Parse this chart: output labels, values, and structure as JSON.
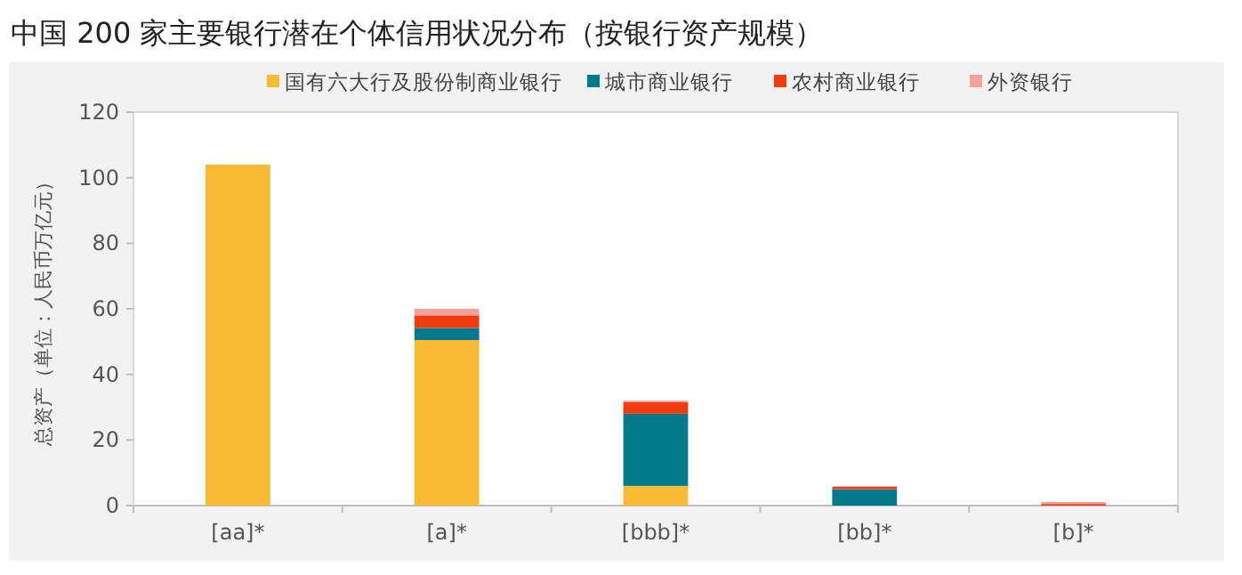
{
  "chart_data": {
    "type": "bar",
    "title": "中国 200 家主要银行潜在个体信用状况分布（按银行资产规模）",
    "ylabel": "总资产（单位：人民币万亿元）",
    "categories": [
      "[aa]*",
      "[a]*",
      "[bbb]*",
      "[bb]*",
      "[b]*"
    ],
    "stacked": true,
    "legend": "top",
    "ylim": [
      0,
      120
    ],
    "yticks": [
      0,
      20,
      40,
      60,
      80,
      100,
      120
    ],
    "series": [
      {
        "name": "国有六大行及股份制商业银行",
        "color": "#f9bb33",
        "values": [
          104,
          50.5,
          6,
          0,
          0
        ]
      },
      {
        "name": "城市商业银行",
        "color": "#007a8c",
        "values": [
          0,
          3.7,
          22,
          5,
          0
        ]
      },
      {
        "name": "农村商业银行",
        "color": "#f23c0f",
        "values": [
          0,
          3.8,
          3.5,
          0.8,
          0.5
        ]
      },
      {
        "name": "外资银行",
        "color": "#f8a19a",
        "values": [
          0,
          2,
          0.5,
          0,
          0.6
        ]
      }
    ]
  }
}
